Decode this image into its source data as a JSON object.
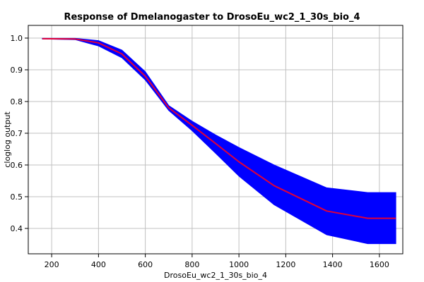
{
  "chart_data": {
    "type": "line",
    "title": "Response of Dmelanogaster to DrosoEu_wc2_1_30s_bio_4",
    "xlabel": "DrosoEu_wc2_1_30s_bio_4",
    "ylabel": "cloglog output",
    "xlim": [
      100,
      1700
    ],
    "ylim": [
      0.32,
      1.04
    ],
    "xticks": [
      200,
      400,
      600,
      800,
      1000,
      1200,
      1400,
      1600
    ],
    "yticks": [
      0.4,
      0.5,
      0.6,
      0.7,
      0.8,
      0.9,
      1.0
    ],
    "xtick_labels": [
      "200",
      "400",
      "600",
      "800",
      "1000",
      "1200",
      "1400",
      "1600"
    ],
    "ytick_labels": [
      "0.4",
      "0.5",
      "0.6",
      "0.7",
      "0.8",
      "0.9",
      "1.0"
    ],
    "grid": true,
    "series": [
      {
        "role": "mean",
        "color": "#e0003a",
        "x": [
          160,
          300,
          400,
          500,
          600,
          700,
          800,
          900,
          1000,
          1150,
          1375,
          1550,
          1670
        ],
        "y": [
          0.998,
          0.997,
          0.985,
          0.95,
          0.88,
          0.78,
          0.725,
          0.668,
          0.61,
          0.535,
          0.455,
          0.432,
          0.432
        ]
      },
      {
        "role": "upper",
        "color": "#0000ff",
        "x": [
          160,
          300,
          400,
          500,
          600,
          700,
          800,
          900,
          1000,
          1150,
          1375,
          1550,
          1670
        ],
        "y": [
          0.999,
          0.999,
          0.992,
          0.962,
          0.894,
          0.787,
          0.738,
          0.695,
          0.655,
          0.6,
          0.528,
          0.513,
          0.513
        ]
      },
      {
        "role": "lower",
        "color": "#0000ff",
        "x": [
          160,
          300,
          400,
          500,
          600,
          700,
          800,
          900,
          1000,
          1150,
          1375,
          1550,
          1670
        ],
        "y": [
          0.997,
          0.995,
          0.975,
          0.938,
          0.868,
          0.772,
          0.708,
          0.637,
          0.565,
          0.475,
          0.38,
          0.352,
          0.352
        ]
      }
    ]
  }
}
